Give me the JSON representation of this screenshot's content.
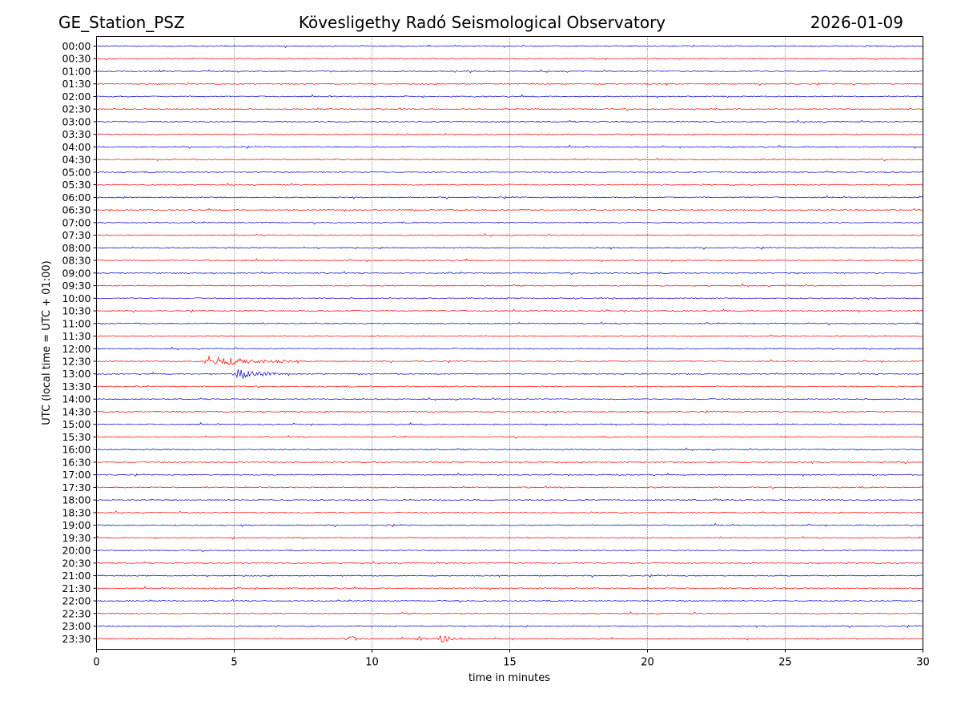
{
  "chart_data": {
    "type": "line",
    "title_left": "GE_Station_PSZ",
    "title_center": "Kövesligethy Radó Seismological Observatory",
    "title_right": "2026-01-09",
    "xlabel": "time in minutes",
    "ylabel": "UTC (local time = UTC + 01:00)",
    "xlim": [
      0,
      30
    ],
    "x_ticks": [
      0,
      5,
      10,
      15,
      20,
      25,
      30
    ],
    "x_tick_labels": [
      "0",
      "5",
      "10",
      "15",
      "20",
      "25",
      "30"
    ],
    "grid": "vertical dotted at 5, 10, 15, 20, 25",
    "trace_colors": [
      "#0000cc",
      "#ff0000"
    ],
    "rows": [
      "00:00",
      "00:30",
      "01:00",
      "01:30",
      "02:00",
      "02:30",
      "03:00",
      "03:30",
      "04:00",
      "04:30",
      "05:00",
      "05:30",
      "06:00",
      "06:30",
      "07:00",
      "07:30",
      "08:00",
      "08:30",
      "09:00",
      "09:30",
      "10:00",
      "10:30",
      "11:00",
      "11:30",
      "12:00",
      "12:30",
      "13:00",
      "13:30",
      "14:00",
      "14:30",
      "15:00",
      "15:30",
      "16:00",
      "16:30",
      "17:00",
      "17:30",
      "18:00",
      "18:30",
      "19:00",
      "19:30",
      "20:00",
      "20:30",
      "21:00",
      "21:30",
      "22:00",
      "22:30",
      "23:00",
      "23:30"
    ],
    "events": [
      {
        "row": "12:30",
        "start_min": 3.9,
        "peak_min": 4.0,
        "end_min": 7.5,
        "amplitude": 1.0
      },
      {
        "row": "13:00",
        "start_min": 4.9,
        "peak_min": 5.2,
        "end_min": 7.0,
        "amplitude": 0.9
      },
      {
        "row": "23:30",
        "start_min": 8.8,
        "peak_min": 9.3,
        "end_min": 10.0,
        "amplitude": 0.35
      },
      {
        "row": "23:30",
        "start_min": 11.5,
        "peak_min": 11.8,
        "end_min": 12.0,
        "amplitude": 0.3
      },
      {
        "row": "23:30",
        "start_min": 12.3,
        "peak_min": 12.6,
        "end_min": 13.3,
        "amplitude": 0.7
      }
    ]
  }
}
